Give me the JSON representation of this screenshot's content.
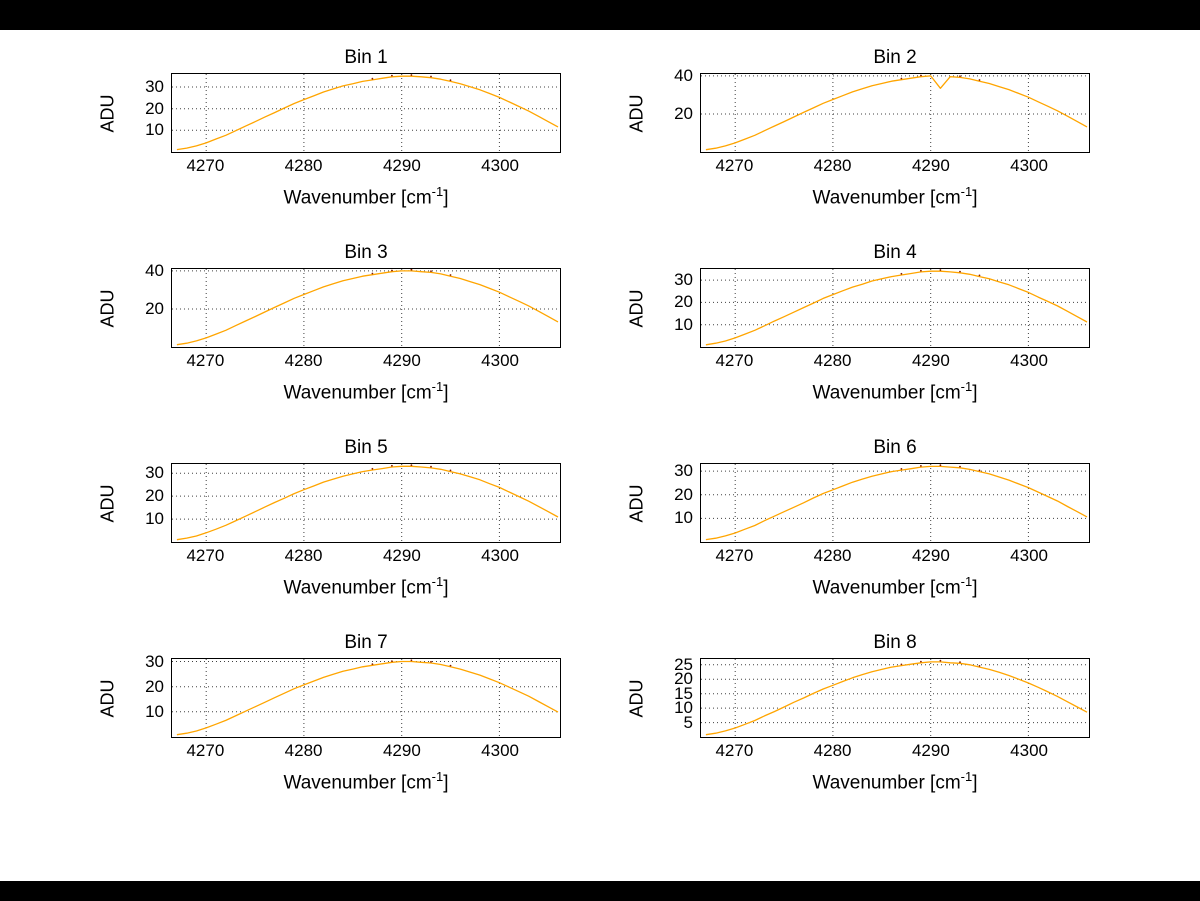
{
  "window": {
    "background": "#FFFFFF",
    "top_bar_color": "#000000",
    "bottom_bar_color": "#000000"
  },
  "chart_data": {
    "type": "line",
    "layout": "4x2 small multiples, grid dotted on, no legend",
    "line_color": "#FFA500",
    "marker_color": "#8B2000",
    "grid_color": "#404040",
    "ylabel": "ADU",
    "xlabel_pre": "Wavenumber [cm",
    "xlabel_sup": "-1",
    "xlabel_post": "]",
    "x_ticks": [
      4270,
      4280,
      4290,
      4300
    ],
    "xlim": [
      4266.5,
      4306.2
    ],
    "x": [
      4267,
      4268,
      4269,
      4270,
      4271,
      4272,
      4273,
      4274,
      4275,
      4276,
      4277,
      4278,
      4279,
      4280,
      4281,
      4282,
      4283,
      4284,
      4285,
      4286,
      4287,
      4288,
      4289,
      4290,
      4291,
      4292,
      4293,
      4294,
      4295,
      4296,
      4297,
      4298,
      4299,
      4300,
      4301,
      4302,
      4303,
      4304,
      4305,
      4306
    ],
    "subplots": [
      {
        "title": "Bin 1",
        "ylim": [
          0,
          36
        ],
        "yticks": [
          10,
          20,
          30
        ],
        "values": [
          1.1,
          1.8,
          2.8,
          4.2,
          6.0,
          7.7,
          9.8,
          11.9,
          14.0,
          16.1,
          18.2,
          20.3,
          22.4,
          24.2,
          25.9,
          27.7,
          29.1,
          30.5,
          31.5,
          32.6,
          33.3,
          34.0,
          34.7,
          35.0,
          35.0,
          34.7,
          34.3,
          33.6,
          32.6,
          31.5,
          30.1,
          28.7,
          27.0,
          25.2,
          23.1,
          21.0,
          18.9,
          16.5,
          14.0,
          11.6
        ]
      },
      {
        "title": "Bin 2",
        "ylim": [
          0,
          41
        ],
        "yticks": [
          20,
          40
        ],
        "values": [
          1.2,
          2.0,
          3.2,
          4.8,
          6.8,
          8.8,
          11.2,
          13.6,
          16.0,
          18.4,
          20.8,
          23.2,
          25.6,
          27.6,
          29.6,
          31.6,
          33.2,
          34.8,
          36.0,
          37.2,
          38.0,
          38.8,
          39.6,
          40.0,
          33.5,
          39.6,
          39.2,
          38.4,
          37.2,
          36.0,
          34.4,
          32.8,
          30.8,
          28.8,
          26.4,
          24.0,
          21.6,
          18.8,
          16.0,
          13.2
        ]
      },
      {
        "title": "Bin 3",
        "ylim": [
          0,
          41
        ],
        "yticks": [
          20,
          40
        ],
        "values": [
          1.2,
          2.0,
          3.2,
          4.8,
          6.8,
          8.8,
          11.2,
          13.6,
          16.0,
          18.4,
          20.8,
          23.2,
          25.6,
          27.6,
          29.6,
          31.6,
          33.2,
          34.8,
          36.0,
          37.2,
          38.0,
          38.8,
          39.6,
          40.0,
          40.0,
          39.6,
          39.2,
          38.4,
          37.2,
          36.0,
          34.4,
          32.8,
          30.8,
          28.8,
          26.4,
          24.0,
          21.6,
          18.8,
          16.0,
          13.2
        ]
      },
      {
        "title": "Bin 4",
        "ylim": [
          0,
          35
        ],
        "yticks": [
          10,
          20,
          30
        ],
        "values": [
          1.0,
          1.7,
          2.7,
          4.1,
          5.8,
          7.5,
          9.5,
          11.6,
          13.6,
          15.6,
          17.7,
          19.7,
          21.8,
          23.5,
          25.2,
          26.9,
          28.2,
          29.6,
          30.6,
          31.6,
          32.3,
          33.0,
          33.7,
          34.0,
          34.0,
          33.7,
          33.3,
          32.6,
          31.6,
          30.6,
          29.2,
          27.9,
          26.2,
          24.5,
          22.4,
          20.4,
          18.4,
          16.0,
          13.6,
          11.2
        ]
      },
      {
        "title": "Bin 5",
        "ylim": [
          0,
          34
        ],
        "yticks": [
          10,
          20,
          30
        ],
        "values": [
          1.0,
          1.7,
          2.6,
          4.0,
          5.6,
          7.3,
          9.2,
          11.2,
          13.2,
          15.2,
          17.2,
          19.1,
          21.1,
          22.8,
          24.4,
          26.1,
          27.4,
          28.7,
          29.7,
          30.7,
          31.4,
          32.0,
          32.7,
          33.0,
          33.0,
          32.7,
          32.3,
          31.7,
          30.7,
          29.7,
          28.4,
          27.1,
          25.4,
          23.8,
          21.8,
          19.8,
          17.8,
          15.5,
          13.2,
          10.9
        ]
      },
      {
        "title": "Bin 6",
        "ylim": [
          0,
          33
        ],
        "yticks": [
          10,
          20,
          30
        ],
        "values": [
          1.0,
          1.6,
          2.6,
          3.8,
          5.4,
          7.0,
          9.0,
          10.9,
          12.8,
          14.7,
          16.6,
          18.6,
          20.5,
          22.1,
          23.7,
          25.3,
          26.6,
          27.8,
          28.8,
          29.8,
          30.4,
          31.0,
          31.7,
          32.0,
          32.0,
          31.7,
          31.4,
          30.7,
          29.8,
          28.8,
          27.5,
          26.2,
          24.6,
          23.0,
          21.1,
          19.2,
          17.3,
          15.0,
          12.8,
          10.6
        ]
      },
      {
        "title": "Bin 7",
        "ylim": [
          0,
          31
        ],
        "yticks": [
          10,
          20,
          30
        ],
        "values": [
          0.9,
          1.5,
          2.4,
          3.6,
          5.1,
          6.6,
          8.4,
          10.2,
          12.0,
          13.8,
          15.6,
          17.4,
          19.2,
          20.7,
          22.2,
          23.7,
          24.9,
          26.1,
          27.0,
          27.9,
          28.5,
          29.1,
          29.7,
          30.0,
          30.0,
          29.7,
          29.4,
          28.8,
          27.9,
          27.0,
          25.8,
          24.6,
          23.1,
          21.6,
          19.8,
          18.0,
          16.2,
          14.1,
          12.0,
          9.9
        ]
      },
      {
        "title": "Bin 8",
        "ylim": [
          0,
          27
        ],
        "yticks": [
          5,
          10,
          15,
          20,
          25
        ],
        "values": [
          0.8,
          1.3,
          2.1,
          3.1,
          4.4,
          5.7,
          7.3,
          8.8,
          10.4,
          12.0,
          13.5,
          15.1,
          16.6,
          17.9,
          19.2,
          20.5,
          21.6,
          22.6,
          23.4,
          24.2,
          24.7,
          25.2,
          25.7,
          26.0,
          26.0,
          25.7,
          25.5,
          25.0,
          24.2,
          23.4,
          22.4,
          21.3,
          20.0,
          18.7,
          17.2,
          15.6,
          14.0,
          12.2,
          10.4,
          8.6
        ]
      }
    ]
  }
}
